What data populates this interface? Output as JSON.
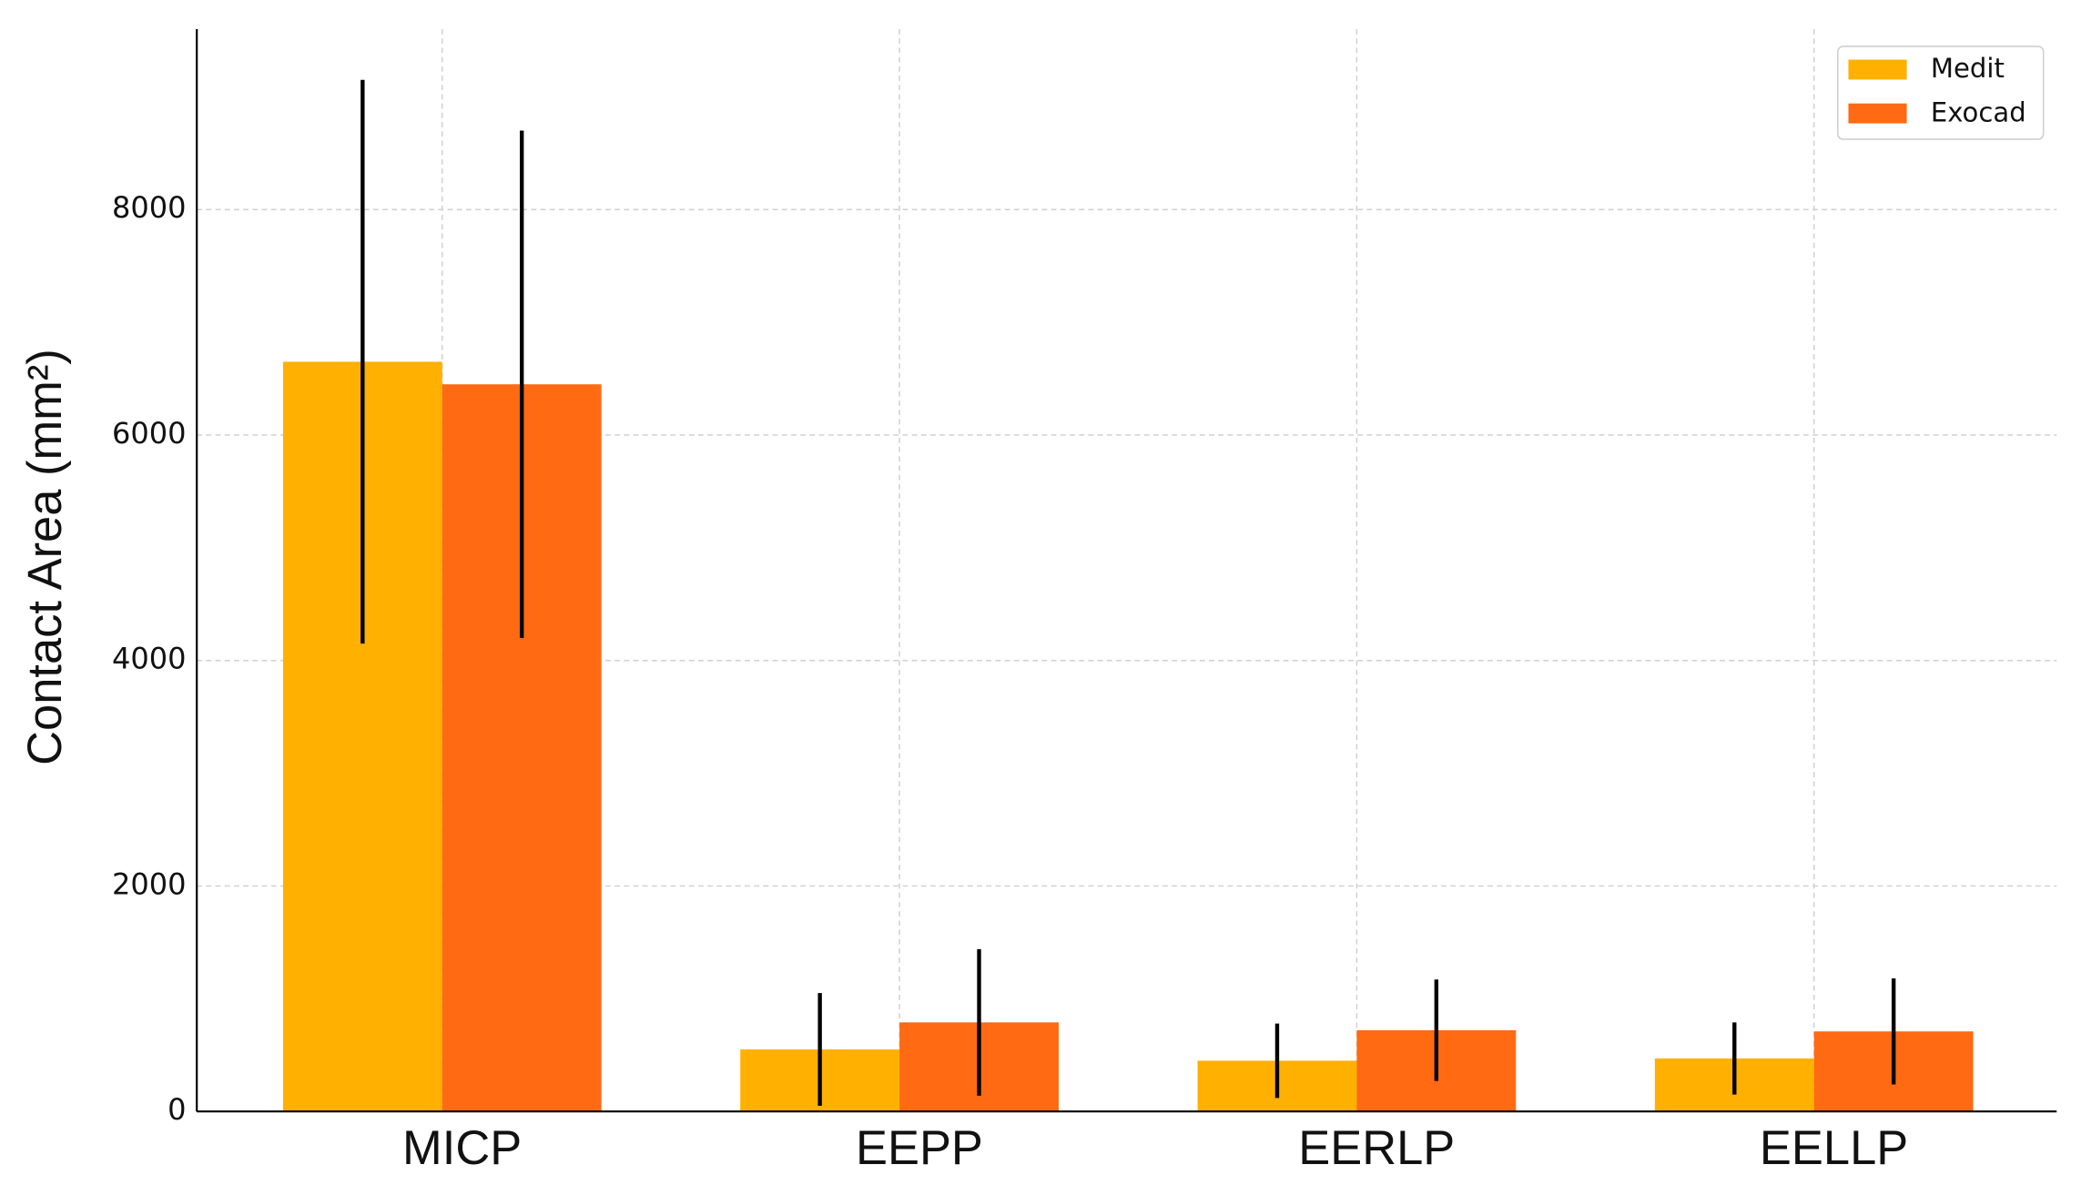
{
  "chart_data": {
    "type": "bar",
    "y_label": "Contact Area (mm²)",
    "categories": [
      "MICP",
      "EEPP",
      "EERLP",
      "EELLP"
    ],
    "series": [
      {
        "name": "Medit",
        "color": "#ffb000",
        "values": [
          6650,
          550,
          450,
          470
        ],
        "errors": [
          2500,
          500,
          330,
          320
        ]
      },
      {
        "name": "Exocad",
        "color": "#ff6a13",
        "values": [
          6450,
          790,
          720,
          710
        ],
        "errors": [
          2250,
          650,
          450,
          470
        ]
      }
    ],
    "ylim": [
      0,
      9600
    ],
    "yticks": [
      0,
      2000,
      4000,
      6000,
      8000
    ],
    "grid": true,
    "legend": "upper right"
  }
}
